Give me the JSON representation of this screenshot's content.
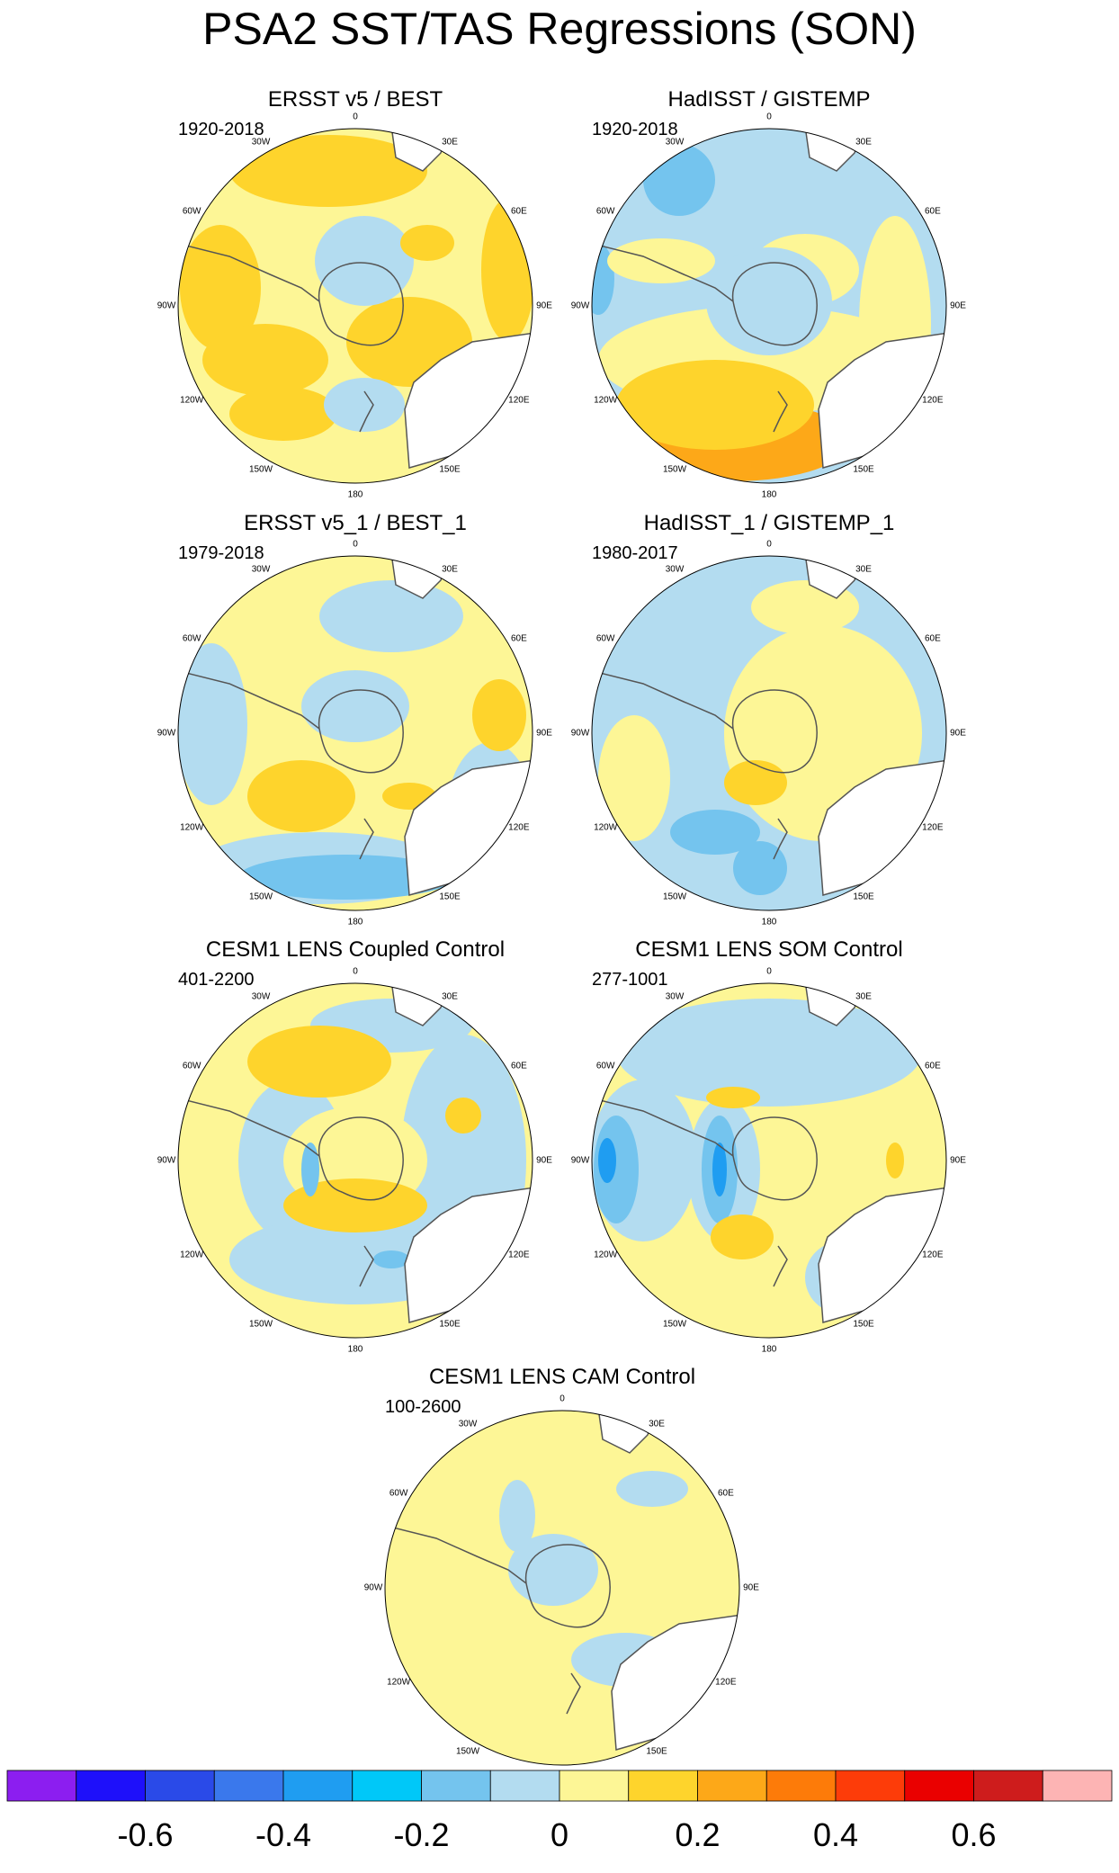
{
  "title": "PSA2 SST/TAS Regressions (SON)",
  "palette": {
    "yellow_light": "#fdf696",
    "yellow_mid": "#fed42c",
    "orange_light": "#fda818",
    "blue_light": "#b3dcf0",
    "blue_mid": "#74c4ee",
    "blue_deep": "#1f9df1",
    "coast": "#555555"
  },
  "panels": [
    {
      "title": "ERSST v5 / BEST",
      "period": "1920-2018",
      "base": "yellow",
      "pattern": "a"
    },
    {
      "title": "HadISST / GISTEMP",
      "period": "1920-2018",
      "base": "blue",
      "pattern": "b"
    },
    {
      "title": "ERSST v5_1 / BEST_1",
      "period": "1979-2018",
      "base": "yellow",
      "pattern": "c"
    },
    {
      "title": "HadISST_1 / GISTEMP_1",
      "period": "1980-2017",
      "base": "blue",
      "pattern": "d"
    },
    {
      "title": "CESM1 LENS Coupled Control",
      "period": "401-2200",
      "base": "yellow",
      "pattern": "e"
    },
    {
      "title": "CESM1 LENS SOM Control",
      "period": "277-1001",
      "base": "yellow",
      "pattern": "f"
    },
    {
      "title": "CESM1 LENS CAM Control",
      "period": "100-2600",
      "base": "yellow",
      "pattern": "g"
    }
  ],
  "lon_labels": [
    "0",
    "30E",
    "60E",
    "90E",
    "120E",
    "150E",
    "180",
    "150W",
    "120W",
    "90W",
    "60W",
    "30W"
  ],
  "colorbar": {
    "colors": [
      "#8c1ef0",
      "#1e10fa",
      "#2a4ae8",
      "#3a78ec",
      "#1f9df1",
      "#00c8f8",
      "#74c4ee",
      "#b3dcf0",
      "#fdf696",
      "#fed42c",
      "#fda818",
      "#fd7b09",
      "#fd3c09",
      "#ea0000",
      "#ce1c1c",
      "#fdb4b4"
    ],
    "labels": [
      "-0.6",
      "-0.4",
      "-0.2",
      "0",
      "0.2",
      "0.4",
      "0.6"
    ]
  }
}
